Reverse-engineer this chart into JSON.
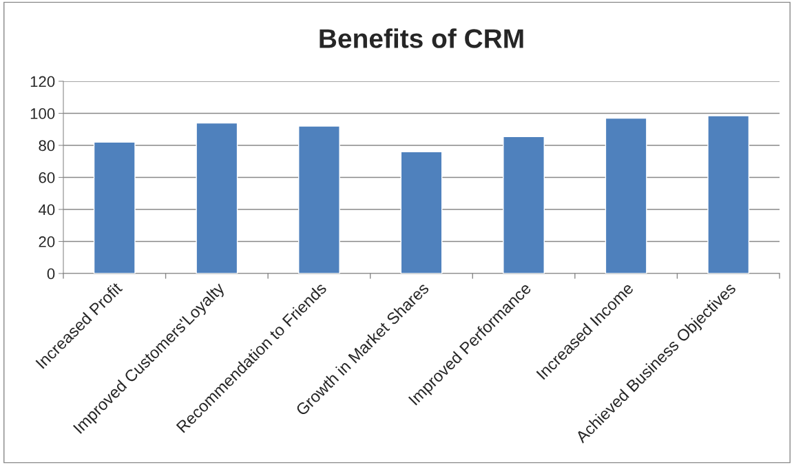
{
  "chart_data": {
    "type": "bar",
    "title": "Benefits of CRM",
    "categories": [
      "Increased Profit",
      "Improved Customers'Loyalty",
      "Recommendation to Friends",
      "Growth in Market Shares",
      "Improved Performance",
      "Increased Income",
      "Achieved Business Objectives"
    ],
    "values": [
      82,
      94,
      92,
      76,
      85.5,
      97,
      98.5
    ],
    "color": "#4f81bd",
    "ylim": [
      0,
      120
    ],
    "yticks": [
      0,
      20,
      40,
      60,
      80,
      100,
      120
    ],
    "grid": "y",
    "legend": false
  }
}
